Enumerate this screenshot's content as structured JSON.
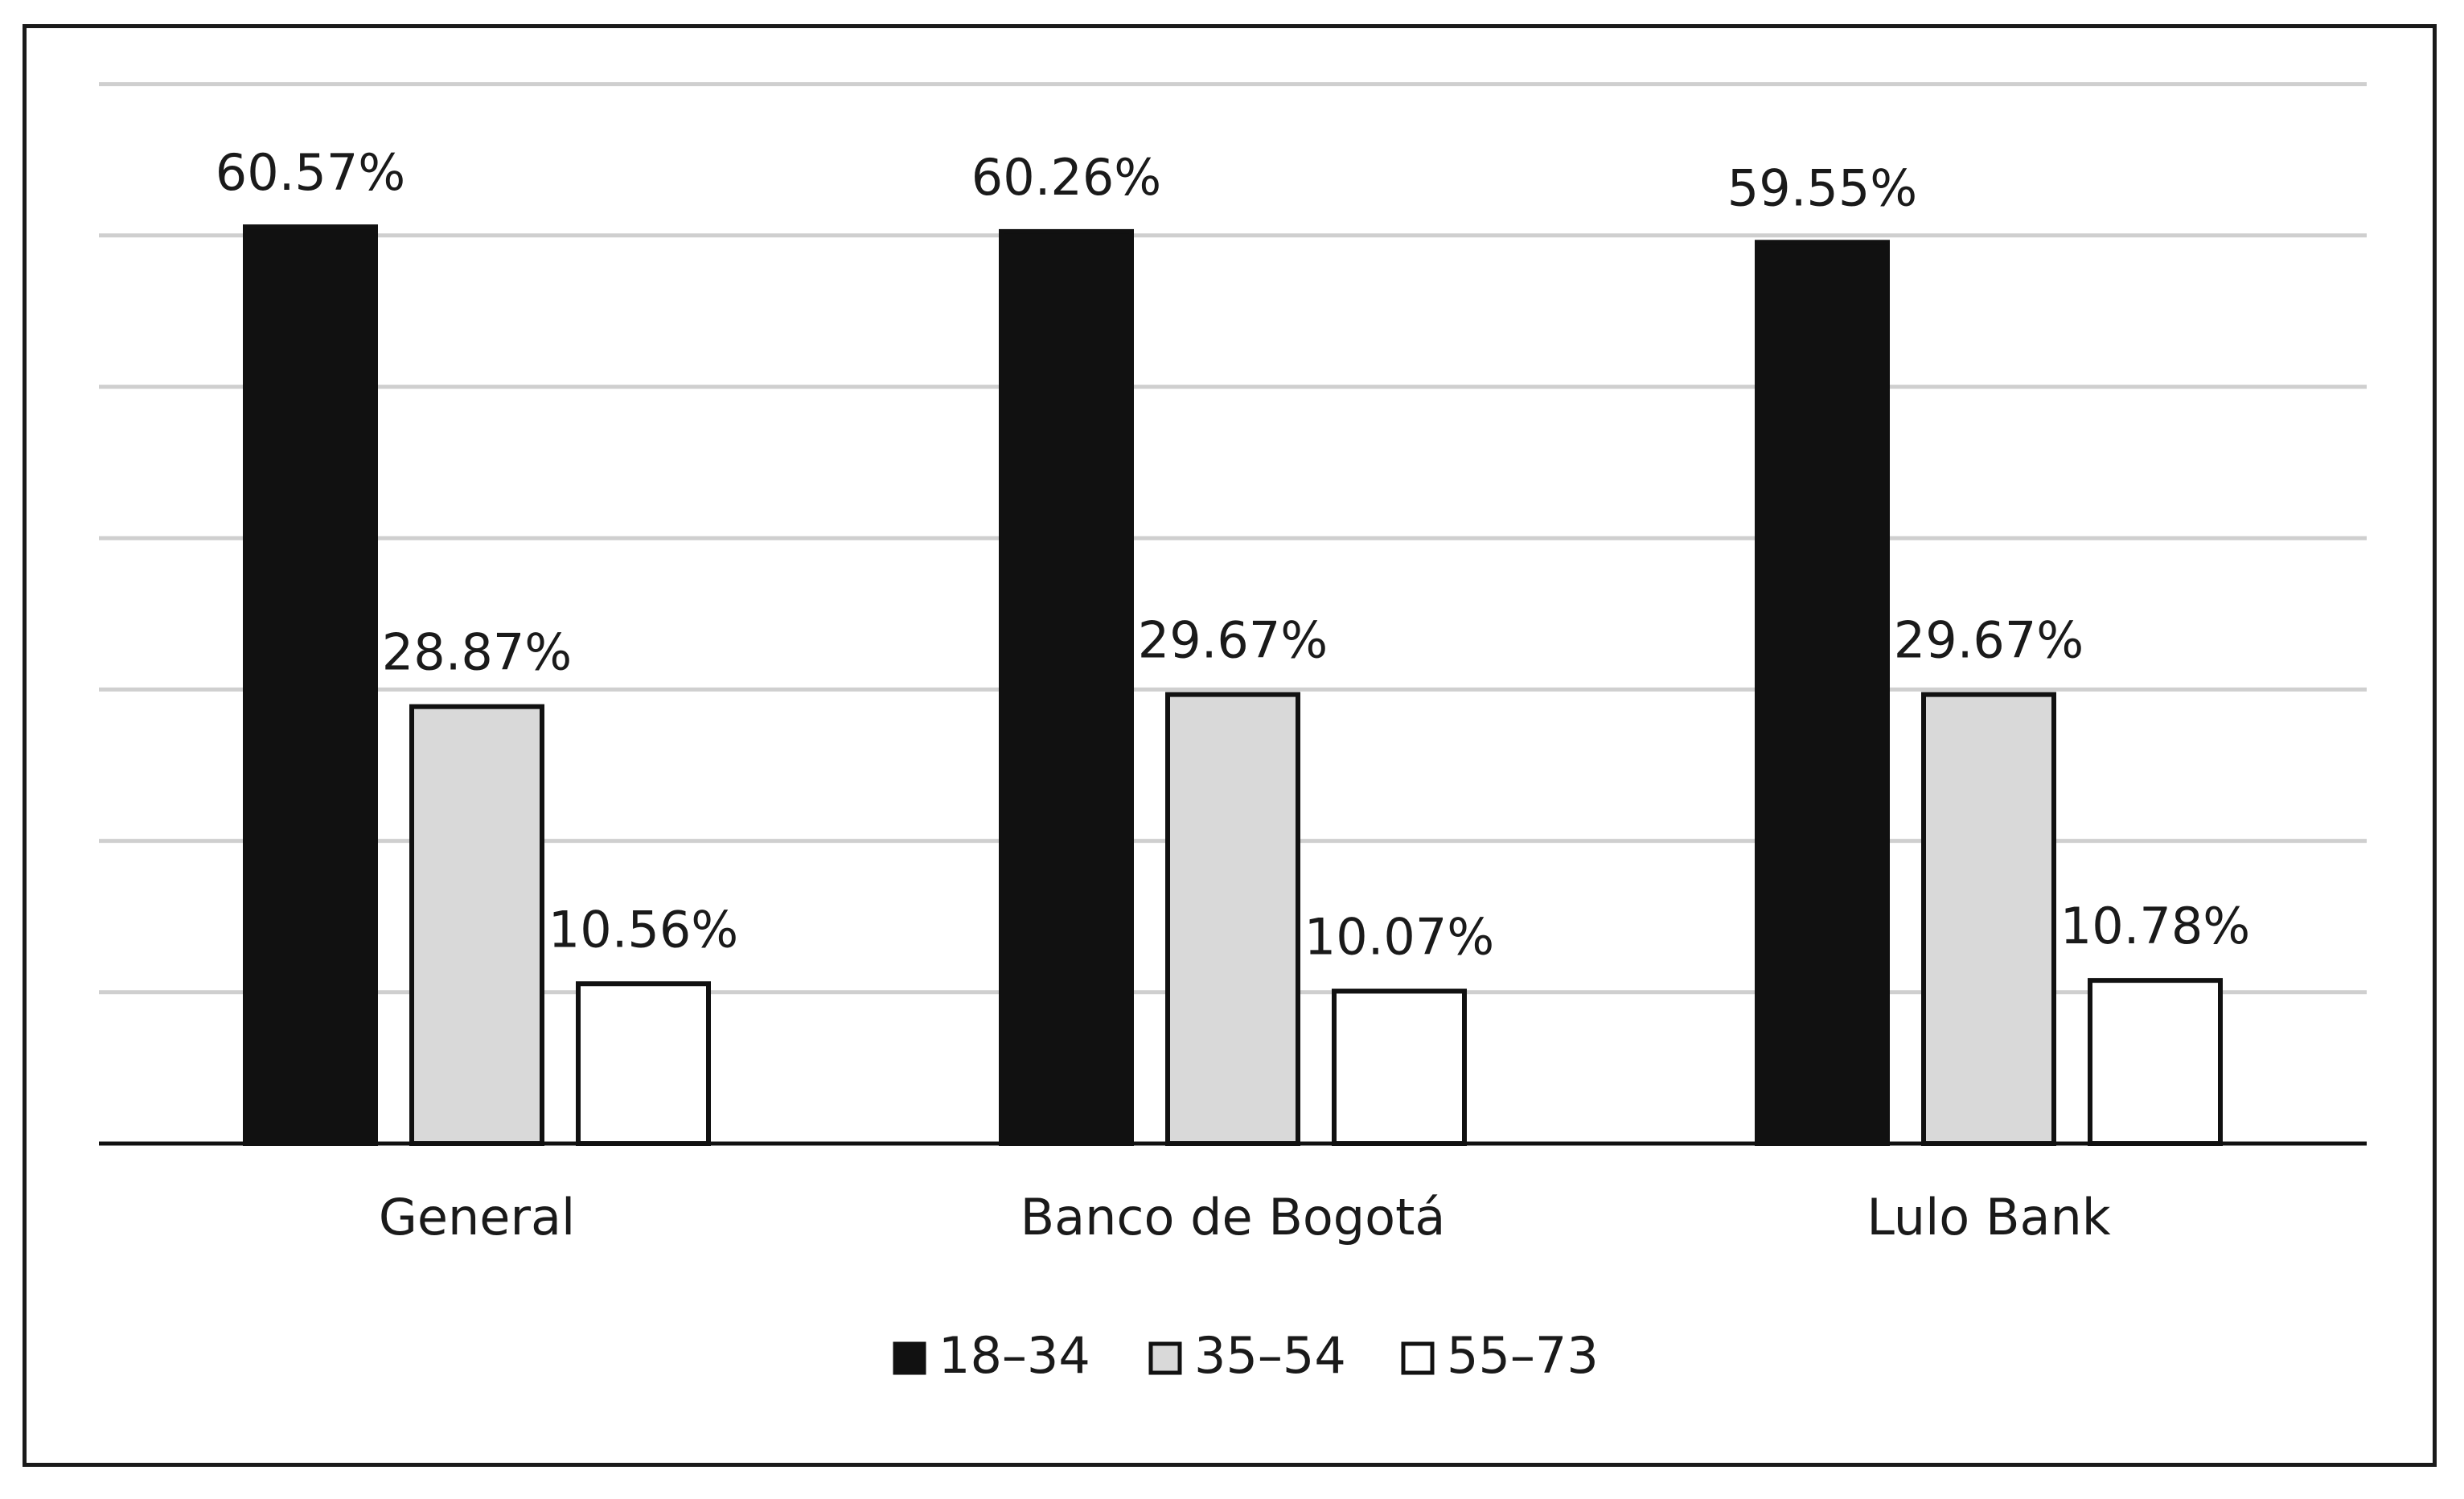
{
  "chart_data": {
    "type": "bar",
    "title": "",
    "xlabel": "",
    "ylabel": "",
    "ylim": [
      0,
      70
    ],
    "grid": true,
    "legend_position": "bottom",
    "categories": [
      "General",
      "Banco de Bogotá",
      "Lulo Bank"
    ],
    "series": [
      {
        "name": "18–34",
        "color": "#111111",
        "values": [
          60.57,
          60.26,
          59.55
        ],
        "labels": [
          "60.57%",
          "60.26%",
          "59.55%"
        ]
      },
      {
        "name": "35–54",
        "color": "#d9d9d9",
        "values": [
          28.87,
          29.67,
          29.67
        ],
        "labels": [
          "28.87%",
          "29.67%",
          "29.67%"
        ]
      },
      {
        "name": "55–73",
        "color": "#ffffff",
        "values": [
          10.56,
          10.07,
          10.78
        ],
        "labels": [
          "10.56%",
          "10.07%",
          "10.78%"
        ]
      }
    ]
  }
}
